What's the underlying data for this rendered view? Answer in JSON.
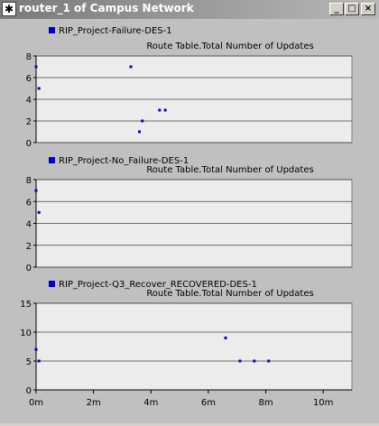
{
  "window": {
    "title": "router_1 of Campus Network",
    "icon": "star-app-icon",
    "buttons": {
      "minimize": "_",
      "maximize": "□",
      "close": "×"
    }
  },
  "colors": {
    "series": "#0000cc",
    "plot_bg": "#ececec",
    "grid": "#404040"
  },
  "chart_data": [
    {
      "type": "scatter",
      "legend": "RIP_Project-Failure-DES-1",
      "title": "Route Table.Total Number of Updates",
      "ylim": [
        0,
        8
      ],
      "yticks": [
        0,
        2,
        4,
        6,
        8
      ],
      "xlim": [
        0,
        11
      ],
      "points": [
        [
          0.0,
          7
        ],
        [
          0.1,
          5
        ],
        [
          3.3,
          7
        ],
        [
          3.6,
          1
        ],
        [
          3.7,
          2
        ],
        [
          4.3,
          3
        ],
        [
          4.5,
          3
        ]
      ]
    },
    {
      "type": "scatter",
      "legend": "RIP_Project-No_Failure-DES-1",
      "title": "Route Table.Total Number of Updates",
      "ylim": [
        0,
        8
      ],
      "yticks": [
        0,
        2,
        4,
        6,
        8
      ],
      "xlim": [
        0,
        11
      ],
      "points": [
        [
          0.0,
          7
        ],
        [
          0.1,
          5
        ]
      ]
    },
    {
      "type": "scatter",
      "legend": "RIP_Project-Q3_Recover_RECOVERED-DES-1",
      "title": "Route Table.Total Number of Updates",
      "ylim": [
        0,
        15
      ],
      "yticks": [
        0,
        5,
        10,
        15
      ],
      "xlim": [
        0,
        11
      ],
      "xticks": [
        0,
        2,
        4,
        6,
        8,
        10
      ],
      "xtick_labels": [
        "0m",
        "2m",
        "4m",
        "6m",
        "8m",
        "10m"
      ],
      "points": [
        [
          0.0,
          7
        ],
        [
          0.1,
          5
        ],
        [
          6.6,
          9
        ],
        [
          7.1,
          5
        ],
        [
          7.6,
          5
        ],
        [
          8.1,
          5
        ]
      ]
    }
  ]
}
